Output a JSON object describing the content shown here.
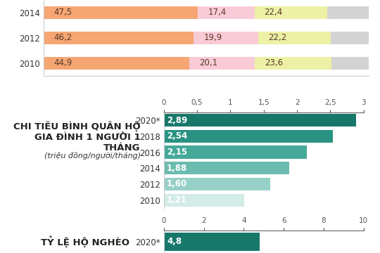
{
  "chart_data": [
    {
      "type": "bar",
      "orientation": "horizontal",
      "stacked": true,
      "data_labels": true,
      "tick_labels": "y",
      "categories": [
        "2014",
        "2012",
        "2010"
      ],
      "series": [
        {
          "color": "#f5a673",
          "values": [
            47.5,
            46.2,
            44.9
          ],
          "value_labels": [
            "47,5",
            "46,2",
            "44,9"
          ]
        },
        {
          "color": "#f9cbd6",
          "values": [
            17.4,
            19.9,
            20.1
          ],
          "value_labels": [
            "17,4",
            "19,9",
            "20,1"
          ]
        },
        {
          "color": "#ecf1a6",
          "values": [
            22.4,
            22.2,
            23.6
          ],
          "value_labels": [
            "22,4",
            "22,2",
            "23,6"
          ]
        },
        {
          "color": "#d3d3d3",
          "values": [
            12.7,
            11.7,
            11.4
          ]
        }
      ],
      "xlim": [
        0,
        100
      ]
    },
    {
      "type": "bar",
      "orientation": "horizontal",
      "data_labels": true,
      "title": "CHI TIÊU BÌNH QUÂN HỘ GIA ĐÌNH 1 NGƯỜI 1 THÁNG",
      "subtitle": "(triệu đồng/người/tháng)",
      "categories": [
        "2020*",
        "2018",
        "2016",
        "2014",
        "2012",
        "2010"
      ],
      "values": [
        2.89,
        2.54,
        2.15,
        1.88,
        1.6,
        1.21
      ],
      "value_labels": [
        "2,89",
        "2,54",
        "2,15",
        "1,88",
        "1,60",
        "1,21"
      ],
      "colors": [
        "#17786a",
        "#2a9282",
        "#45a898",
        "#6bbcae",
        "#97d0c6",
        "#d3ece7"
      ],
      "xlim": [
        0,
        3
      ],
      "xticks": [
        0,
        {
          "value": 0.5,
          "label": "0,5"
        },
        1,
        {
          "value": 1.5,
          "label": "1,5"
        },
        2,
        {
          "value": 2.5,
          "label": "2,5"
        },
        3
      ]
    },
    {
      "type": "bar",
      "orientation": "horizontal",
      "data_labels": true,
      "title": "TỶ LỆ HỘ NGHÈO",
      "categories": [
        "2020*"
      ],
      "values": [
        4.8
      ],
      "value_labels": [
        "4,8"
      ],
      "color": "#17786a",
      "xlim": [
        0,
        10
      ],
      "xticks": [
        0,
        2,
        4,
        6,
        8,
        10
      ]
    }
  ]
}
